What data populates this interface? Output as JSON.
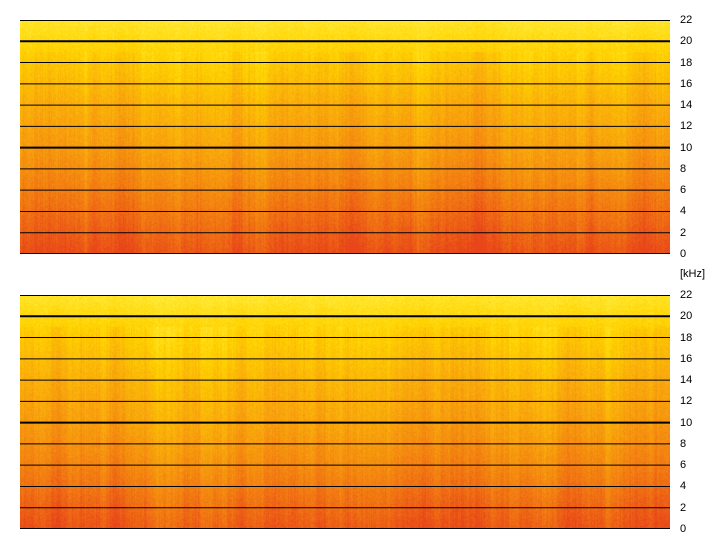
{
  "chart_data": [
    {
      "type": "heatmap",
      "title": "",
      "channel": 1,
      "xlabel": "",
      "ylabel": "[kHz]",
      "ylim": [
        0,
        22
      ],
      "yticks": [
        0,
        2,
        4,
        6,
        8,
        10,
        12,
        14,
        16,
        18,
        20,
        22
      ],
      "grid": true,
      "bold_gridlines": [
        10,
        20
      ],
      "colormap": [
        "#e8451a",
        "#f27a12",
        "#f9a80c",
        "#ffd300",
        "#fff24a"
      ],
      "mean_intensity_by_khz": [
        {
          "khz": 0,
          "level": 0.05
        },
        {
          "khz": 3,
          "level": 0.18
        },
        {
          "khz": 6,
          "level": 0.3
        },
        {
          "khz": 10,
          "level": 0.45
        },
        {
          "khz": 14,
          "level": 0.55
        },
        {
          "khz": 18,
          "level": 0.7
        },
        {
          "khz": 22,
          "level": 0.9
        }
      ]
    },
    {
      "type": "heatmap",
      "title": "",
      "channel": 2,
      "xlabel": "",
      "ylabel": "[kHz]",
      "ylim": [
        0,
        22
      ],
      "yticks": [
        0,
        2,
        4,
        6,
        8,
        10,
        12,
        14,
        16,
        18,
        20,
        22
      ],
      "grid": true,
      "bold_gridlines": [
        10,
        20
      ],
      "colormap": [
        "#e8451a",
        "#f27a12",
        "#f9a80c",
        "#ffd300",
        "#fff24a"
      ],
      "mean_intensity_by_khz": [
        {
          "khz": 0,
          "level": 0.08
        },
        {
          "khz": 3,
          "level": 0.2
        },
        {
          "khz": 6,
          "level": 0.32
        },
        {
          "khz": 10,
          "level": 0.46
        },
        {
          "khz": 14,
          "level": 0.56
        },
        {
          "khz": 18,
          "level": 0.7
        },
        {
          "khz": 22,
          "level": 0.9
        }
      ]
    }
  ],
  "unit_label": "[kHz]"
}
